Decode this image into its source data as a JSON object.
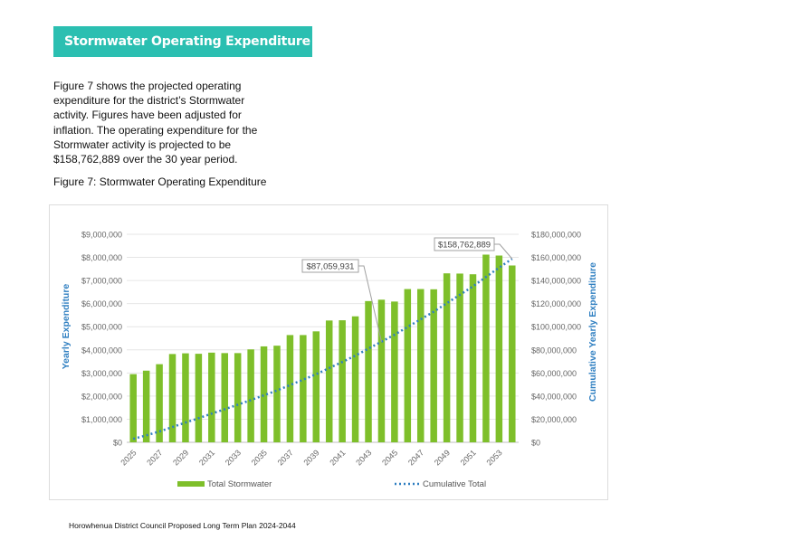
{
  "section_title": "Stormwater Operating Expenditure",
  "intro_text": "Figure 7 shows the projected operating expenditure for the district’s Stormwater activity. Figures have been adjusted for inflation. The operating expenditure for the Stormwater activity is projected to be $158,762,889 over the 30 year period.",
  "figure_caption": "Figure 7: Stormwater Operating Expenditure",
  "footer": "Horowhenua District Council Proposed Long Term Plan 2024-2044",
  "colors": {
    "banner": "#2bbfb1",
    "bars": "#7ebf2a",
    "line": "#2f7fc1",
    "axis_title": "#2f7fc1"
  },
  "chart_data": {
    "type": "bar",
    "title": "",
    "xlabel": "",
    "ylabel": "Yearly Expenditure",
    "y2label": "Cumulative Yearly Expenditure",
    "ylim": [
      0,
      9000000
    ],
    "y2lim": [
      0,
      180000000
    ],
    "yticks": [
      "$0",
      "$1,000,000",
      "$2,000,000",
      "$3,000,000",
      "$4,000,000",
      "$5,000,000",
      "$6,000,000",
      "$7,000,000",
      "$8,000,000",
      "$9,000,000"
    ],
    "y2ticks": [
      "$0",
      "$20,000,000",
      "$40,000,000",
      "$60,000,000",
      "$80,000,000",
      "$100,000,000",
      "$120,000,000",
      "$140,000,000",
      "$160,000,000",
      "$180,000,000"
    ],
    "xtick_labels": [
      "2025",
      "2027",
      "2029",
      "2031",
      "2033",
      "2035",
      "2037",
      "2039",
      "2041",
      "2043",
      "2045",
      "2047",
      "2049",
      "2051",
      "2053"
    ],
    "categories": [
      "2025",
      "2026",
      "2027",
      "2028",
      "2029",
      "2030",
      "2031",
      "2032",
      "2033",
      "2034",
      "2035",
      "2036",
      "2037",
      "2038",
      "2039",
      "2040",
      "2041",
      "2042",
      "2043",
      "2044",
      "2045",
      "2046",
      "2047",
      "2048",
      "2049",
      "2050",
      "2051",
      "2052",
      "2053",
      "2054"
    ],
    "series": [
      {
        "name": "Total Stormwater",
        "kind": "bar",
        "axis": "left",
        "values": [
          2950000,
          3100000,
          3380000,
          3820000,
          3850000,
          3830000,
          3880000,
          3860000,
          3860000,
          4020000,
          4150000,
          4180000,
          4640000,
          4640000,
          4800000,
          5270000,
          5280000,
          5450000,
          6110000,
          6170000,
          6090000,
          6630000,
          6630000,
          6620000,
          7310000,
          7300000,
          7270000,
          8120000,
          8080000,
          7650000
        ]
      },
      {
        "name": "Cumulative Total",
        "kind": "line",
        "axis": "right",
        "values": [
          2950000,
          6050000,
          9430000,
          13250000,
          17100000,
          20930000,
          24810000,
          28670000,
          32530000,
          36550000,
          40700000,
          44880000,
          49520000,
          54160000,
          58960000,
          64230000,
          69510000,
          74960000,
          81070000,
          87059931,
          93150000,
          99780000,
          106410000,
          113030000,
          120340000,
          127640000,
          134910000,
          143030000,
          151110000,
          158762889
        ]
      }
    ],
    "annotations": [
      {
        "label": "$87,059,931",
        "index": 19
      },
      {
        "label": "$158,762,889",
        "index": 29
      }
    ],
    "legend_position": "bottom",
    "grid": true
  }
}
